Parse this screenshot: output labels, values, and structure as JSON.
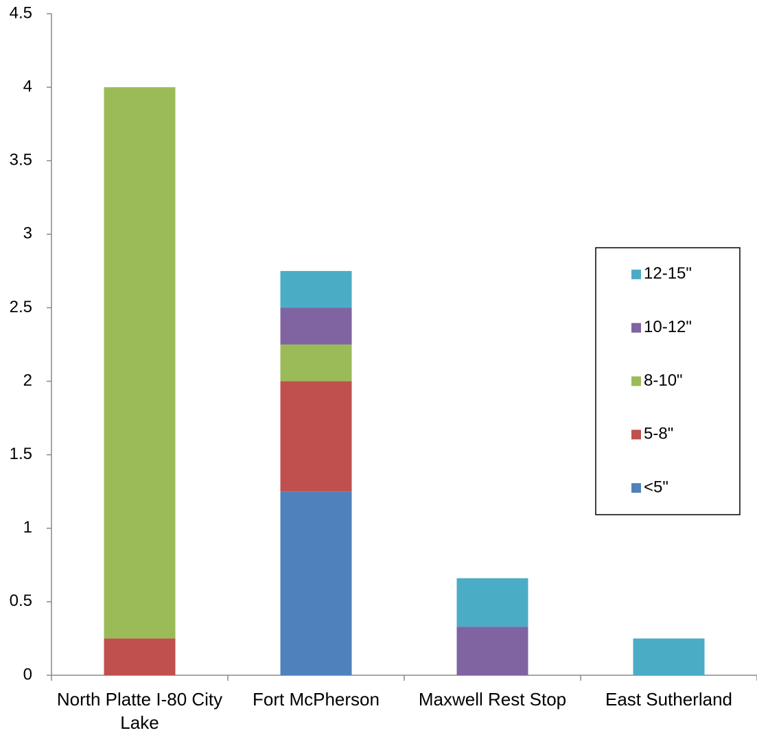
{
  "chart_data": {
    "type": "stacked_bar",
    "categories": [
      "North Platte I-80 City Lake",
      "Fort McPherson",
      "Maxwell Rest Stop",
      "East Sutherland"
    ],
    "series": [
      {
        "name": "<5\"",
        "color": "#4f81bd",
        "values": [
          0,
          1.25,
          0,
          0
        ]
      },
      {
        "name": "5-8\"",
        "color": "#c0504d",
        "values": [
          0.25,
          0.75,
          0,
          0
        ]
      },
      {
        "name": "8-10\"",
        "color": "#9bbb59",
        "values": [
          3.75,
          0.25,
          0,
          0
        ]
      },
      {
        "name": "10-12\"",
        "color": "#8064a2",
        "values": [
          0,
          0.25,
          0.33,
          0
        ]
      },
      {
        "name": "12-15\"",
        "color": "#4bacc6",
        "values": [
          0,
          0.25,
          0.33,
          0.25
        ]
      }
    ],
    "ylim": [
      0,
      4.5
    ],
    "yticks": [
      0,
      0.5,
      1,
      1.5,
      2,
      2.5,
      3,
      3.5,
      4,
      4.5
    ],
    "grid": false,
    "legend": "right"
  }
}
